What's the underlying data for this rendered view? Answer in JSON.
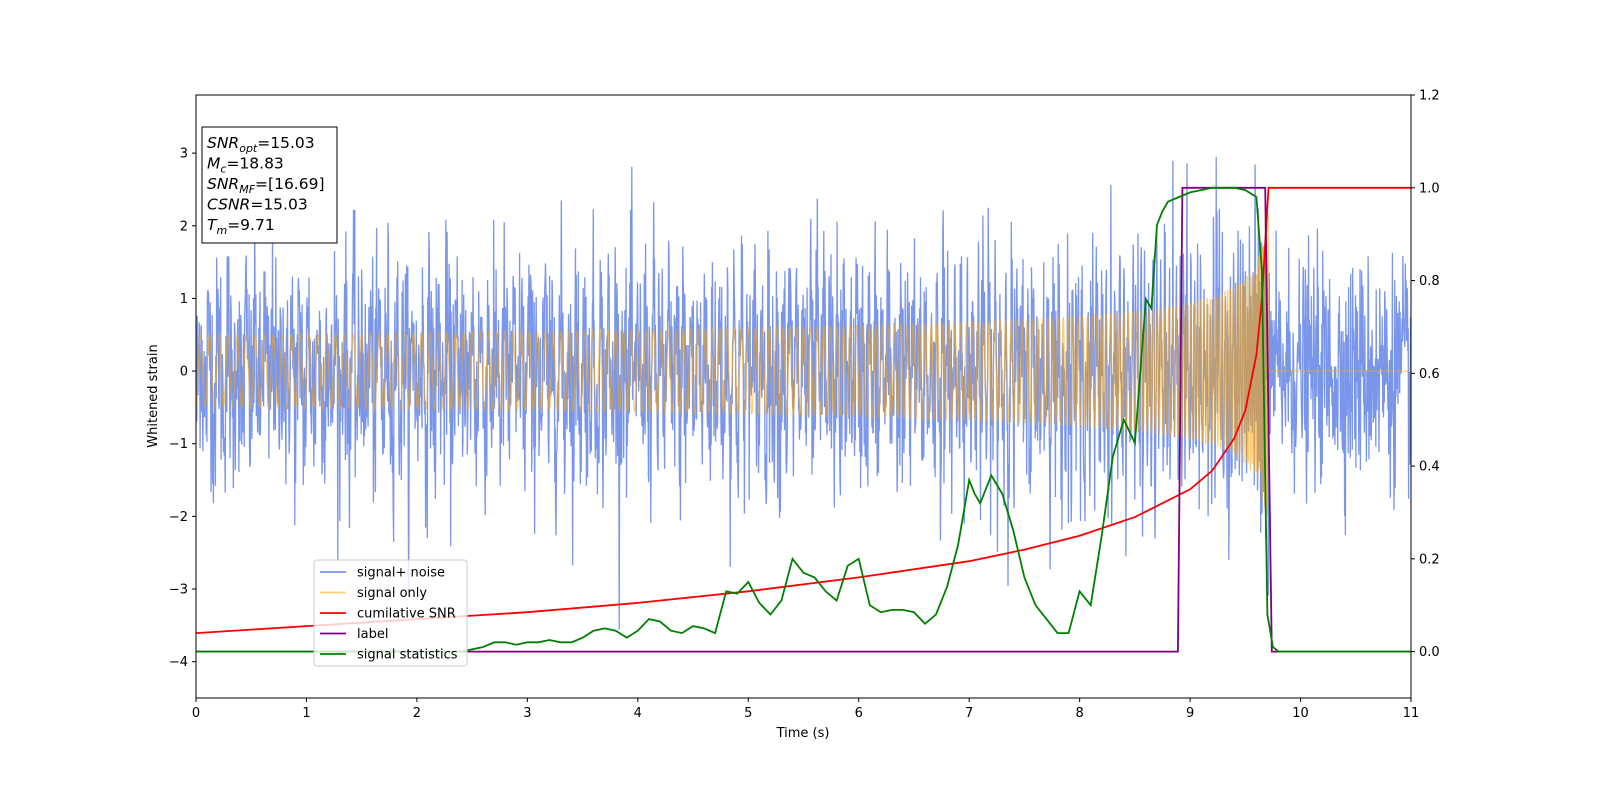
{
  "chart_data": {
    "type": "line",
    "xlabel": "Time (s)",
    "ylabel": "Whitened strain",
    "xlim": [
      0,
      11
    ],
    "ylim_left": [
      -4.5,
      3.8
    ],
    "ylim_right": [
      -0.1,
      1.2
    ],
    "xticks": [
      "0",
      "1",
      "2",
      "3",
      "4",
      "5",
      "6",
      "7",
      "8",
      "9",
      "10",
      "11"
    ],
    "yticks_left": [
      "−4",
      "−3",
      "−2",
      "−1",
      "0",
      "1",
      "2",
      "3"
    ],
    "yticks_right": [
      "0.0",
      "0.2",
      "0.4",
      "0.6",
      "0.8",
      "1.0",
      "1.2"
    ],
    "legend_position": "lower-left",
    "grid": false,
    "series": [
      {
        "name": "signal+ noise",
        "color": "#4169E1",
        "axis": "left",
        "kind": "noise",
        "sigma": 0.75,
        "max_abs": 3.4
      },
      {
        "name": "signal only",
        "color": "#FFA500",
        "axis": "left",
        "kind": "chirp",
        "t_merge": 9.71,
        "amplitude_at_merge": 2.5
      },
      {
        "name": "cumilative SNR",
        "color": "#FF0000",
        "axis": "right",
        "x": [
          0,
          1,
          2,
          3,
          4,
          5,
          6,
          7,
          7.5,
          8,
          8.5,
          9,
          9.2,
          9.4,
          9.5,
          9.6,
          9.65,
          9.71,
          9.72,
          11
        ],
        "y": [
          0.04,
          0.055,
          0.07,
          0.085,
          0.105,
          0.13,
          0.16,
          0.195,
          0.22,
          0.25,
          0.29,
          0.35,
          0.39,
          0.46,
          0.52,
          0.64,
          0.76,
          1.0,
          1.0,
          1.0
        ]
      },
      {
        "name": "label",
        "color": "#800080",
        "axis": "right",
        "x": [
          0,
          8.89,
          8.93,
          9.68,
          9.74,
          11
        ],
        "y": [
          0,
          0,
          1,
          1,
          0,
          0
        ]
      },
      {
        "name": "signal statistics",
        "color": "#008000",
        "axis": "right",
        "x": [
          0,
          0.5,
          1,
          1.5,
          2,
          2.2,
          2.4,
          2.6,
          2.7,
          2.8,
          2.9,
          3.0,
          3.1,
          3.2,
          3.3,
          3.4,
          3.5,
          3.6,
          3.7,
          3.8,
          3.9,
          4.0,
          4.1,
          4.2,
          4.3,
          4.4,
          4.5,
          4.6,
          4.7,
          4.8,
          4.9,
          5.0,
          5.1,
          5.2,
          5.3,
          5.4,
          5.5,
          5.6,
          5.7,
          5.8,
          5.9,
          6.0,
          6.1,
          6.2,
          6.3,
          6.4,
          6.5,
          6.6,
          6.7,
          6.8,
          6.9,
          7.0,
          7.05,
          7.1,
          7.15,
          7.2,
          7.3,
          7.4,
          7.5,
          7.6,
          7.7,
          7.8,
          7.9,
          8.0,
          8.1,
          8.2,
          8.3,
          8.4,
          8.5,
          8.6,
          8.65,
          8.7,
          8.75,
          8.8,
          8.9,
          9.0,
          9.1,
          9.2,
          9.3,
          9.4,
          9.5,
          9.6,
          9.65,
          9.7,
          9.75,
          9.8,
          9.9,
          10,
          11
        ],
        "y": [
          0.0,
          0.0,
          0.0,
          0.0,
          0.0,
          0.0,
          0.0,
          0.01,
          0.02,
          0.02,
          0.015,
          0.02,
          0.02,
          0.025,
          0.02,
          0.02,
          0.03,
          0.045,
          0.05,
          0.045,
          0.03,
          0.045,
          0.07,
          0.065,
          0.045,
          0.04,
          0.055,
          0.05,
          0.04,
          0.13,
          0.125,
          0.15,
          0.105,
          0.08,
          0.11,
          0.2,
          0.17,
          0.16,
          0.13,
          0.11,
          0.185,
          0.2,
          0.1,
          0.085,
          0.09,
          0.09,
          0.085,
          0.06,
          0.08,
          0.14,
          0.23,
          0.37,
          0.34,
          0.32,
          0.35,
          0.38,
          0.34,
          0.26,
          0.16,
          0.1,
          0.07,
          0.04,
          0.04,
          0.13,
          0.1,
          0.25,
          0.42,
          0.5,
          0.45,
          0.76,
          0.74,
          0.92,
          0.95,
          0.97,
          0.98,
          0.99,
          0.995,
          1.0,
          1.0,
          1.0,
          0.995,
          0.98,
          0.82,
          0.08,
          0.01,
          0.0,
          0.0,
          0.0,
          0.0
        ]
      }
    ],
    "annotation": [
      {
        "main": "SNR",
        "sub": "opt",
        "value": "=15.03"
      },
      {
        "main": "M",
        "sub": "c",
        "value": "=18.83"
      },
      {
        "main": "SNR",
        "sub": "MF",
        "value": "=[16.69]"
      },
      {
        "main": "CSNR",
        "sub": "",
        "value": "=15.03"
      },
      {
        "main": "T",
        "sub": "m",
        "value": "=9.71"
      }
    ]
  }
}
